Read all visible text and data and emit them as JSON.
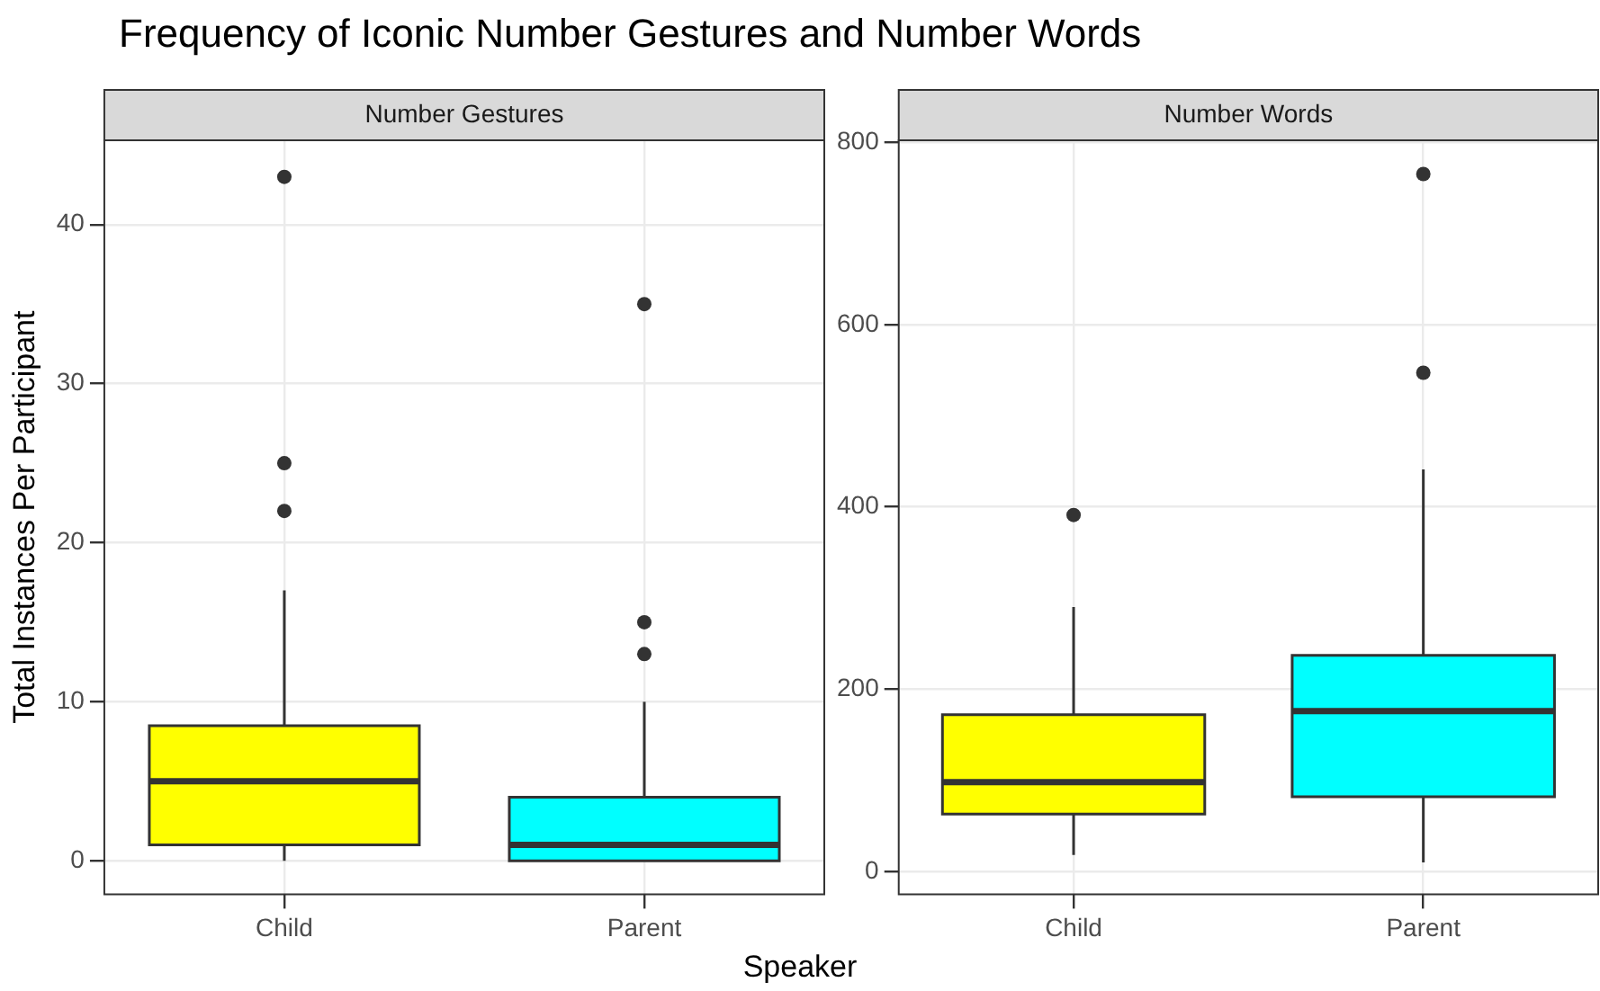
{
  "chart_data": [
    {
      "type": "box",
      "title": "Frequency of Iconic Number Gestures and Number Words",
      "subtitle": "Number Gestures",
      "xlabel": "Speaker",
      "ylabel": "Total Instances Per Participant",
      "categories": [
        "Child",
        "Parent"
      ],
      "colors": [
        "#ffff00",
        "#00ffff"
      ],
      "boxes": [
        {
          "low": 0,
          "q1": 1,
          "median": 5,
          "q3": 8.5,
          "high": 17,
          "outliers": [
            22,
            25,
            43
          ]
        },
        {
          "low": 0,
          "q1": 0,
          "median": 1,
          "q3": 4,
          "high": 10,
          "outliers": [
            13,
            15,
            35
          ]
        }
      ],
      "ylim": [
        -2.1,
        45.3
      ],
      "yticks": [
        0,
        10,
        20,
        30,
        40
      ],
      "grid": true,
      "legend": false
    },
    {
      "type": "box",
      "subtitle": "Number Words",
      "categories": [
        "Child",
        "Parent"
      ],
      "colors": [
        "#ffff00",
        "#00ffff"
      ],
      "boxes": [
        {
          "low": 18,
          "q1": 63,
          "median": 98,
          "q3": 172,
          "high": 290,
          "outliers": [
            391
          ]
        },
        {
          "low": 10,
          "q1": 82,
          "median": 176,
          "q3": 237,
          "high": 441,
          "outliers": [
            547,
            765
          ]
        }
      ],
      "ylim": [
        -25,
        802
      ],
      "yticks": [
        0,
        200,
        400,
        600,
        800
      ],
      "grid": true,
      "legend": false
    }
  ]
}
